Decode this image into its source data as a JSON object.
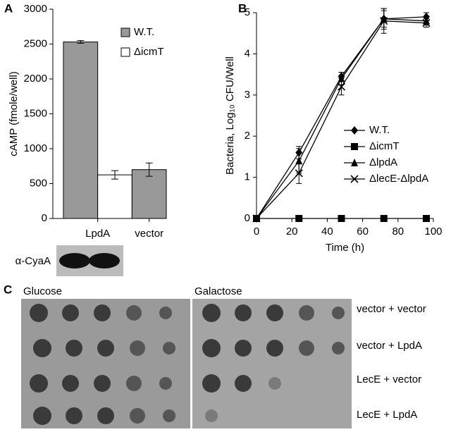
{
  "panel_labels": [
    "A",
    "B",
    "C"
  ],
  "blot_label": "α-CyaA",
  "chart_data": [
    {
      "type": "bar",
      "ylabel": "cAMP (fmole/well)",
      "categories": [
        "LpdA",
        "vector"
      ],
      "series": [
        {
          "name": "W.T.",
          "color": "#999999",
          "values": [
            2530,
            700
          ],
          "errors": [
            20,
            95
          ]
        },
        {
          "name": "ΔicmT",
          "color": "#ffffff",
          "values": [
            625,
            null
          ],
          "errors": [
            60,
            null
          ]
        }
      ],
      "ylim": [
        0,
        3000
      ],
      "yticks": [
        0,
        500,
        1000,
        1500,
        2000,
        2500,
        3000
      ]
    },
    {
      "type": "line",
      "xlabel": "Time (h)",
      "ylabel": "Bacteria, Log₁₀ CFU/Well",
      "x": [
        0,
        24,
        48,
        72,
        96
      ],
      "series": [
        {
          "name": "W.T.",
          "color": "#000000",
          "marker": "diamond",
          "values": [
            0,
            1.6,
            3.45,
            4.85,
            4.9
          ],
          "errors": [
            0,
            0.15,
            0.1,
            0.25,
            0.1
          ]
        },
        {
          "name": "ΔicmT",
          "color": "#000000",
          "marker": "square",
          "values": [
            0,
            0,
            0,
            0,
            0
          ],
          "errors": [
            0,
            0,
            0,
            0,
            0
          ]
        },
        {
          "name": "ΔlpdA",
          "color": "#000000",
          "marker": "triangle",
          "values": [
            0,
            1.4,
            3.4,
            4.85,
            4.8
          ],
          "errors": [
            0,
            0.3,
            0.15,
            0.2,
            0.1
          ]
        },
        {
          "name": "ΔlecE-ΔlpdA",
          "color": "#000000",
          "marker": "x",
          "values": [
            0,
            1.1,
            3.2,
            4.8,
            4.75
          ],
          "errors": [
            0,
            0.25,
            0.2,
            0.3,
            0.1
          ]
        }
      ],
      "xlim": [
        0,
        100
      ],
      "xticks": [
        0,
        20,
        40,
        60,
        80,
        100
      ],
      "ylim": [
        0,
        5
      ],
      "yticks": [
        0,
        1,
        2,
        3,
        4,
        5
      ]
    }
  ],
  "plates": {
    "titles": [
      "Glucose",
      "Galactose"
    ],
    "rows": [
      "vector + vector",
      "vector + LpdA",
      "LecE + vector",
      "LecE + LpdA"
    ]
  }
}
